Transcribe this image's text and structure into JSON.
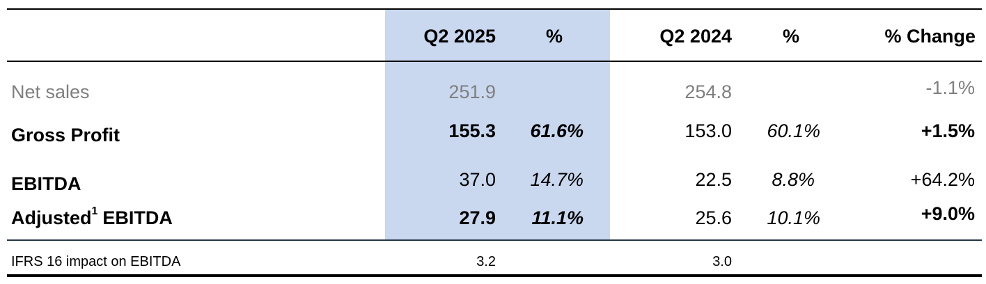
{
  "header": {
    "columns": [
      "Q2 2025",
      "%",
      "Q2 2024",
      "%",
      "% Change"
    ]
  },
  "rows": [
    {
      "label": "Net sales",
      "q2_2025": "251.9",
      "q2_2024": "254.8",
      "change": "-1.1%"
    },
    {
      "label": "Gross Profit",
      "q2_2025": "155.3",
      "pct_2025": "61.6%",
      "q2_2024": "153.0",
      "pct_2024": "60.1%",
      "change": "+1.5%"
    },
    {
      "label": "EBITDA",
      "q2_2025": "37.0",
      "pct_2025": "14.7%",
      "q2_2024": "22.5",
      "pct_2024": "8.8%",
      "change": "+64.2%"
    },
    {
      "label": "Adjusted",
      "superscript": "1",
      "label_suffix": "EBITDA",
      "q2_2025": "27.9",
      "pct_2025": "11.1%",
      "q2_2024": "25.6",
      "pct_2024": "10.1%",
      "change": "+9.0%"
    }
  ],
  "footer_row": {
    "label": "IFRS 16 impact on EBITDA",
    "q2_2025": "3.2",
    "q2_2024": "3.0"
  }
}
